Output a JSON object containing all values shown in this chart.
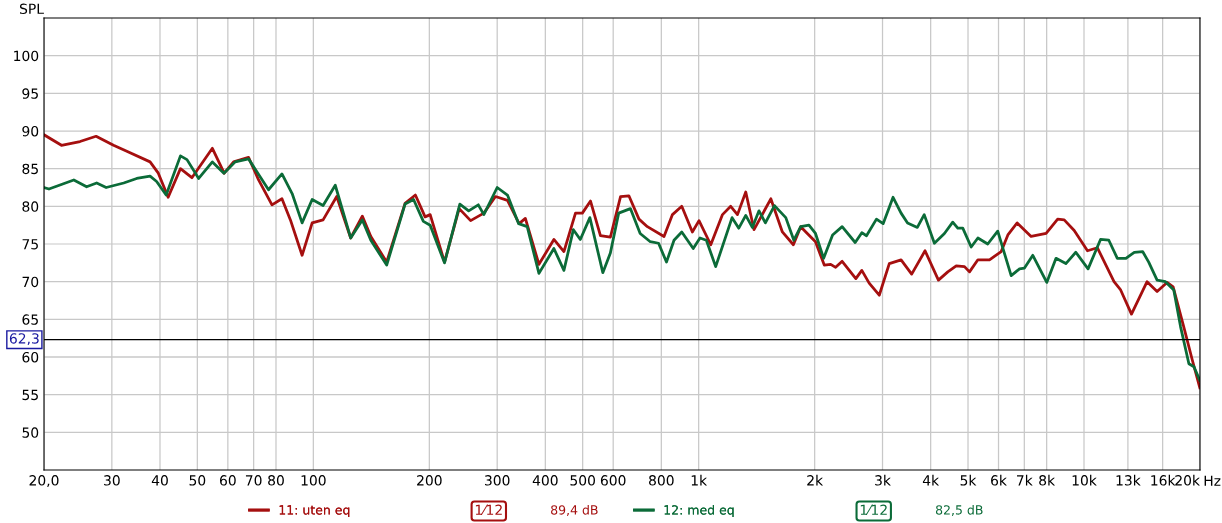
{
  "chart_data": {
    "type": "line",
    "ylabel": "SPL",
    "log": "x",
    "grid": true,
    "legend": "bottom",
    "marker": "none",
    "line_style": "solid",
    "xlim": [
      20,
      20000
    ],
    "ylim": [
      45,
      105
    ],
    "xticks": [
      {
        "value": 20,
        "label": "20,0"
      },
      30,
      40,
      50,
      60,
      70,
      80,
      100,
      200,
      300,
      400,
      500,
      600,
      800,
      {
        "value": 1000,
        "label": "1k"
      },
      {
        "value": 2000,
        "label": "2k"
      },
      {
        "value": 3000,
        "label": "3k"
      },
      {
        "value": 4000,
        "label": "4k"
      },
      {
        "value": 5000,
        "label": "5k"
      },
      {
        "value": 6000,
        "label": "6k"
      },
      {
        "value": 7000,
        "label": "7k"
      },
      {
        "value": 8000,
        "label": "8k"
      },
      {
        "value": 10000,
        "label": "10k"
      },
      {
        "value": 13000,
        "label": "13k"
      },
      {
        "value": 16000,
        "label": "16k"
      },
      {
        "value": 20000,
        "label": "20k"
      }
    ],
    "xlabel": "Hz",
    "yticks": [
      50,
      55,
      60,
      65,
      70,
      75,
      80,
      85,
      90,
      95,
      100
    ],
    "ref_lines": [
      {
        "axis": "y",
        "value": 62.3,
        "label": "62,3",
        "color": "#000000",
        "line_style": "solid"
      }
    ],
    "annotations": [
      "1⁄12",
      "89,4 dB",
      "1⁄12",
      "82,5 dB"
    ],
    "series": [
      {
        "name": "11: uten eq",
        "color": "#a50f0f",
        "x": [
          20,
          22.2,
          24.8,
          27.3,
          30.3,
          32.8,
          37.7,
          39.6,
          42.0,
          45.2,
          48.4,
          54.7,
          58.7,
          62.1,
          67.9,
          72.1,
          78.1,
          82.9,
          87.2,
          93.5,
          99.3,
          106,
          115,
          125,
          134,
          141,
          155,
          173,
          184,
          195,
          201,
          219,
          239,
          256,
          277,
          297,
          319,
          342,
          355,
          385,
          421,
          447,
          479,
          499,
          524,
          556,
          590,
          627,
          659,
          700,
          736,
          813,
          855,
          904,
          963,
          1002,
          1075,
          1153,
          1211,
          1261,
          1325,
          1392,
          1539,
          1649,
          1761,
          1840,
          1914,
          2010,
          2118,
          2201,
          2267,
          2357,
          2558,
          2651,
          2770,
          2942,
          3124,
          3352,
          3571,
          3868,
          4190,
          4431,
          4660,
          4896,
          5045,
          5304,
          5685,
          6097,
          6345,
          6708,
          7290,
          7974,
          8544,
          8885,
          9432,
          10210,
          10834,
          11965,
          12448,
          13281,
          14577,
          15477,
          16430,
          17033,
          18150,
          19100,
          19980
        ],
        "values": [
          89.5,
          88.1,
          88.6,
          89.3,
          88.1,
          87.3,
          85.9,
          84.4,
          81.2,
          85.0,
          83.8,
          87.7,
          84.4,
          85.9,
          86.5,
          83.5,
          80.2,
          81.0,
          78.2,
          73.5,
          77.8,
          78.2,
          81.3,
          75.8,
          78.7,
          76.0,
          72.6,
          80.4,
          81.5,
          78.6,
          78.9,
          72.6,
          79.7,
          78.1,
          79.1,
          81.3,
          80.8,
          77.7,
          78.4,
          72.3,
          75.6,
          74.0,
          79.1,
          79.1,
          80.7,
          76.1,
          75.9,
          81.3,
          81.4,
          78.3,
          77.3,
          76.0,
          78.9,
          80.0,
          76.6,
          78.1,
          74.9,
          78.9,
          80.0,
          78.9,
          81.9,
          76.9,
          81.0,
          76.6,
          74.9,
          77.3,
          76.4,
          75.3,
          72.2,
          72.3,
          71.9,
          72.7,
          70.4,
          71.5,
          69.8,
          68.2,
          72.4,
          72.9,
          71.0,
          74.1,
          70.2,
          71.3,
          72.1,
          72.0,
          71.3,
          72.9,
          72.9,
          74.0,
          76.2,
          77.8,
          76.0,
          76.4,
          78.3,
          78.2,
          76.8,
          74.1,
          74.5,
          70.0,
          68.9,
          65.7,
          70.0,
          68.7,
          69.9,
          69.3,
          64.0,
          59.6,
          55.9
        ]
      },
      {
        "name": "12: med eq",
        "color": "#0b6b38",
        "x": [
          20,
          20.6,
          23.9,
          25.8,
          27.4,
          29.0,
          32.2,
          34.8,
          37.7,
          39.2,
          41.5,
          45.2,
          47.0,
          50.4,
          54.7,
          58.6,
          62.7,
          67.9,
          76.5,
          82.9,
          88.1,
          93.5,
          99.3,
          106,
          114,
          125,
          134,
          141,
          155,
          173,
          182,
          193,
          201,
          219,
          240,
          253,
          268,
          277,
          300,
          319,
          341,
          359,
          385,
          421,
          447,
          473,
          493,
          522,
          564,
          590,
          620,
          665,
          705,
          749,
          787,
          825,
          863,
          904,
          968,
          1008,
          1047,
          1107,
          1221,
          1271,
          1325,
          1378,
          1434,
          1490,
          1573,
          1683,
          1766,
          1840,
          1933,
          2010,
          2110,
          2226,
          2357,
          2548,
          2651,
          2726,
          2893,
          3011,
          3195,
          3352,
          3484,
          3694,
          3849,
          4090,
          4343,
          4564,
          4703,
          4846,
          5096,
          5304,
          5626,
          5972,
          6471,
          6802,
          7007,
          7365,
          8005,
          8460,
          8973,
          9523,
          10247,
          11038,
          11598,
          12203,
          12846,
          13505,
          14195,
          14720,
          15477,
          16269,
          17100,
          17810,
          18716,
          19290,
          19980
        ],
        "values": [
          82.5,
          82.3,
          83.5,
          82.6,
          83.1,
          82.5,
          83.1,
          83.7,
          84.0,
          83.3,
          81.5,
          86.7,
          86.2,
          83.7,
          85.9,
          84.4,
          85.9,
          86.3,
          82.2,
          84.3,
          81.7,
          77.8,
          80.9,
          80.1,
          82.8,
          75.8,
          78.2,
          75.5,
          72.2,
          80.3,
          80.9,
          78.0,
          77.5,
          72.5,
          80.3,
          79.4,
          80.2,
          78.9,
          82.5,
          81.5,
          77.7,
          77.3,
          71.1,
          74.4,
          71.5,
          76.9,
          75.6,
          78.5,
          71.2,
          73.8,
          79.1,
          79.7,
          76.4,
          75.3,
          75.1,
          72.6,
          75.5,
          76.6,
          74.4,
          75.8,
          75.5,
          72.0,
          78.5,
          77.1,
          78.8,
          77.2,
          79.4,
          77.8,
          80.1,
          78.5,
          75.5,
          77.3,
          77.5,
          76.4,
          73.1,
          76.2,
          77.3,
          75.2,
          76.5,
          76.1,
          78.3,
          77.7,
          81.2,
          79.1,
          77.8,
          77.2,
          78.9,
          75.1,
          76.4,
          77.9,
          77.1,
          77.1,
          74.6,
          75.8,
          75.0,
          76.7,
          70.8,
          71.7,
          71.8,
          73.5,
          69.9,
          73.1,
          72.4,
          73.9,
          71.7,
          75.6,
          75.5,
          73.1,
          73.1,
          73.9,
          74.0,
          72.6,
          70.2,
          70.0,
          68.9,
          64.0,
          59.1,
          58.7,
          56.9
        ]
      }
    ]
  }
}
